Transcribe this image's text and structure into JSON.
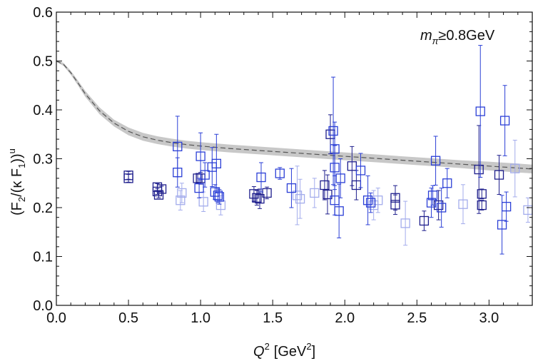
{
  "chart_data": {
    "type": "scatter",
    "title": "",
    "annotation": {
      "main": "m",
      "sub": "π",
      "rest": "≥0.8GeV"
    },
    "xlabel": {
      "var": "Q",
      "sup": "2",
      "unit_pre": "[GeV",
      "unit_sup": "2",
      "unit_post": "]"
    },
    "ylabel": {
      "text": "(F",
      "p1": "2",
      "mid": "/(κ F",
      "p2": "1",
      "end": "))",
      "sup": "u"
    },
    "xlim": [
      0.0,
      3.3
    ],
    "ylim": [
      0.0,
      0.6
    ],
    "xticks": [
      0.0,
      0.5,
      1.0,
      1.5,
      2.0,
      2.5,
      3.0
    ],
    "xtick_labels": [
      "0.0",
      "0.5",
      "1.0",
      "1.5",
      "2.0",
      "2.5",
      "3.0"
    ],
    "yticks": [
      0.0,
      0.1,
      0.2,
      0.3,
      0.4,
      0.5,
      0.6
    ],
    "ytick_labels": [
      "0.0",
      "0.1",
      "0.2",
      "0.3",
      "0.4",
      "0.5",
      "0.6"
    ],
    "colors": {
      "dark": "#1e1e8c",
      "medium": "#2b3fd6",
      "light": "#a3acec",
      "band": "#c8c8c8",
      "curve": "#555555"
    },
    "band": {
      "x": [
        0.0,
        0.05,
        0.1,
        0.15,
        0.2,
        0.3,
        0.4,
        0.5,
        0.6,
        0.7,
        0.8,
        0.9,
        1.0,
        1.2,
        1.4,
        1.6,
        1.8,
        2.0,
        2.2,
        2.4,
        2.6,
        2.8,
        3.0,
        3.2,
        3.3
      ],
      "center": [
        0.5,
        0.493,
        0.476,
        0.455,
        0.433,
        0.398,
        0.373,
        0.356,
        0.345,
        0.338,
        0.333,
        0.329,
        0.326,
        0.321,
        0.317,
        0.313,
        0.309,
        0.305,
        0.301,
        0.297,
        0.293,
        0.289,
        0.285,
        0.281,
        0.279
      ],
      "halfwidth": [
        0.002,
        0.003,
        0.004,
        0.005,
        0.006,
        0.007,
        0.007,
        0.008,
        0.008,
        0.008,
        0.008,
        0.008,
        0.008,
        0.008,
        0.008,
        0.008,
        0.008,
        0.008,
        0.008,
        0.008,
        0.008,
        0.008,
        0.009,
        0.009,
        0.009
      ]
    },
    "series": [
      {
        "name": "dark",
        "points": [
          {
            "x": 0.5,
            "y": 0.266,
            "err": 0.008
          },
          {
            "x": 0.5,
            "y": 0.26,
            "err": 0.008
          },
          {
            "x": 0.7,
            "y": 0.242,
            "err": 0.007
          },
          {
            "x": 0.7,
            "y": 0.233,
            "err": 0.006
          },
          {
            "x": 0.73,
            "y": 0.238,
            "err": 0.006
          },
          {
            "x": 0.71,
            "y": 0.226,
            "err": 0.006
          },
          {
            "x": 0.98,
            "y": 0.26,
            "err": 0.01
          },
          {
            "x": 1.0,
            "y": 0.26,
            "err": 0.012
          },
          {
            "x": 1.37,
            "y": 0.228,
            "err": 0.015
          },
          {
            "x": 1.39,
            "y": 0.22,
            "err": 0.015
          },
          {
            "x": 1.41,
            "y": 0.218,
            "err": 0.02
          },
          {
            "x": 1.46,
            "y": 0.23,
            "err": 0.012
          },
          {
            "x": 1.86,
            "y": 0.246,
            "err": 0.03
          },
          {
            "x": 1.88,
            "y": 0.227,
            "err": 0.04
          },
          {
            "x": 1.9,
            "y": 0.35,
            "err": 0.04
          },
          {
            "x": 2.05,
            "y": 0.285,
            "err": 0.04
          },
          {
            "x": 2.08,
            "y": 0.246,
            "err": 0.03
          },
          {
            "x": 2.35,
            "y": 0.22,
            "err": 0.025
          },
          {
            "x": 2.35,
            "y": 0.206,
            "err": 0.02
          },
          {
            "x": 2.55,
            "y": 0.173,
            "err": 0.02
          },
          {
            "x": 2.65,
            "y": 0.205,
            "err": 0.03
          },
          {
            "x": 2.93,
            "y": 0.278,
            "err": 0.09
          },
          {
            "x": 2.95,
            "y": 0.228,
            "err": 0.01
          },
          {
            "x": 2.95,
            "y": 0.205,
            "err": 0.01
          },
          {
            "x": 3.07,
            "y": 0.267,
            "err": 0.04
          }
        ]
      },
      {
        "name": "medium",
        "points": [
          {
            "x": 0.84,
            "y": 0.325,
            "err": 0.062
          },
          {
            "x": 0.84,
            "y": 0.272,
            "err": 0.03
          },
          {
            "x": 1.0,
            "y": 0.305,
            "err": 0.048
          },
          {
            "x": 0.99,
            "y": 0.24,
            "err": 0.02
          },
          {
            "x": 1.03,
            "y": 0.267,
            "err": 0.025
          },
          {
            "x": 1.08,
            "y": 0.283,
            "err": 0.04
          },
          {
            "x": 1.11,
            "y": 0.29,
            "err": 0.06
          },
          {
            "x": 1.1,
            "y": 0.232,
            "err": 0.015
          },
          {
            "x": 1.12,
            "y": 0.225,
            "err": 0.015
          },
          {
            "x": 1.13,
            "y": 0.222,
            "err": 0.015
          },
          {
            "x": 1.42,
            "y": 0.262,
            "err": 0.03
          },
          {
            "x": 1.55,
            "y": 0.27,
            "err": 0.012
          },
          {
            "x": 1.63,
            "y": 0.24,
            "err": 0.04
          },
          {
            "x": 1.92,
            "y": 0.357,
            "err": 0.11
          },
          {
            "x": 1.93,
            "y": 0.32,
            "err": 0.055
          },
          {
            "x": 1.93,
            "y": 0.282,
            "err": 0.045
          },
          {
            "x": 1.97,
            "y": 0.26,
            "err": 0.04
          },
          {
            "x": 1.93,
            "y": 0.215,
            "err": 0.03
          },
          {
            "x": 1.96,
            "y": 0.193,
            "err": 0.055
          },
          {
            "x": 2.11,
            "y": 0.276,
            "err": 0.035
          },
          {
            "x": 2.16,
            "y": 0.215,
            "err": 0.05
          },
          {
            "x": 2.18,
            "y": 0.21,
            "err": 0.02
          },
          {
            "x": 2.61,
            "y": 0.225,
            "err": 0.02
          },
          {
            "x": 2.6,
            "y": 0.21,
            "err": 0.03
          },
          {
            "x": 2.63,
            "y": 0.296,
            "err": 0.05
          },
          {
            "x": 2.67,
            "y": 0.2,
            "err": 0.04
          },
          {
            "x": 2.71,
            "y": 0.25,
            "err": 0.03
          },
          {
            "x": 2.94,
            "y": 0.397,
            "err": 0.135
          },
          {
            "x": 3.11,
            "y": 0.378,
            "err": 0.072
          },
          {
            "x": 3.09,
            "y": 0.165,
            "err": 0.06
          },
          {
            "x": 3.12,
            "y": 0.202,
            "err": 0.03
          }
        ]
      },
      {
        "name": "light",
        "points": [
          {
            "x": 0.87,
            "y": 0.23,
            "err": 0.02
          },
          {
            "x": 0.86,
            "y": 0.215,
            "err": 0.02
          },
          {
            "x": 1.02,
            "y": 0.212,
            "err": 0.02
          },
          {
            "x": 1.14,
            "y": 0.205,
            "err": 0.02
          },
          {
            "x": 1.67,
            "y": 0.225,
            "err": 0.06
          },
          {
            "x": 1.69,
            "y": 0.218,
            "err": 0.04
          },
          {
            "x": 1.79,
            "y": 0.23,
            "err": 0.03
          },
          {
            "x": 2.2,
            "y": 0.205,
            "err": 0.03
          },
          {
            "x": 2.23,
            "y": 0.215,
            "err": 0.025
          },
          {
            "x": 2.42,
            "y": 0.168,
            "err": 0.045
          },
          {
            "x": 2.82,
            "y": 0.207,
            "err": 0.04
          },
          {
            "x": 3.18,
            "y": 0.28,
            "err": 0.058
          },
          {
            "x": 3.27,
            "y": 0.195,
            "err": 0.025
          }
        ]
      }
    ]
  }
}
